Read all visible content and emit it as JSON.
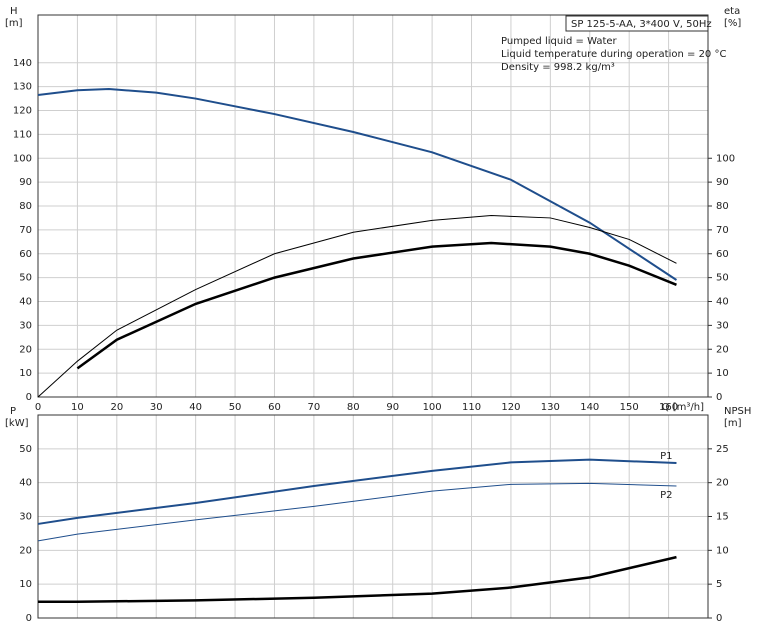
{
  "chart_data": [
    {
      "type": "line",
      "xlabel": "Q [m³/h]",
      "ylabel": "H",
      "ylabel_unit": "[m]",
      "y2label": "eta",
      "y2label_unit": "[%]",
      "annotations": [
        "SP 125-5-AA, 3*400 V, 50Hz",
        "Pumped liquid = Water",
        "Liquid temperature during operation = 20 °C",
        "Density = 998.2 kg/m³"
      ],
      "xlim": [
        0,
        170
      ],
      "xticks": [
        0,
        10,
        20,
        30,
        40,
        50,
        60,
        70,
        80,
        90,
        100,
        110,
        120,
        130,
        140,
        150,
        160
      ],
      "ylim": [
        0,
        160
      ],
      "yticks": [
        0,
        10,
        20,
        30,
        40,
        50,
        60,
        70,
        80,
        90,
        100,
        110,
        120,
        130,
        140
      ],
      "y2lim": [
        0,
        160
      ],
      "y2ticks": [
        0,
        10,
        20,
        30,
        40,
        50,
        60,
        70,
        80,
        90,
        100
      ],
      "grid": true,
      "series": [
        {
          "color": "#1f4e8c",
          "linewidth": 2,
          "axis": "y",
          "x": [
            0,
            10,
            18,
            30,
            40,
            60,
            80,
            100,
            120,
            140,
            162
          ],
          "values": [
            126.5,
            128.5,
            129,
            127.5,
            125,
            118.5,
            111,
            102.5,
            91,
            73,
            49
          ]
        },
        {
          "color": "#000000",
          "linewidth": 1,
          "axis": "y2",
          "x": [
            0,
            10,
            20,
            40,
            60,
            80,
            100,
            115,
            130,
            140,
            150,
            162
          ],
          "values": [
            0,
            15,
            28,
            45,
            60,
            69,
            74,
            76,
            75,
            71,
            66,
            56
          ]
        },
        {
          "color": "#000000",
          "linewidth": 2.5,
          "axis": "y2",
          "x": [
            10,
            20,
            40,
            60,
            80,
            100,
            115,
            130,
            140,
            150,
            162
          ],
          "values": [
            12,
            24,
            39,
            50,
            58,
            63,
            64.5,
            63,
            60,
            55,
            47
          ]
        }
      ]
    },
    {
      "type": "line",
      "ylabel": "P",
      "ylabel_unit": "[kW]",
      "y2label": "NPSH",
      "y2label_unit": "[m]",
      "xlim": [
        0,
        170
      ],
      "xticks": [
        0,
        10,
        20,
        30,
        40,
        50,
        60,
        70,
        80,
        90,
        100,
        110,
        120,
        130,
        140,
        150,
        160
      ],
      "ylim": [
        0,
        60
      ],
      "yticks": [
        0,
        10,
        20,
        30,
        40,
        50
      ],
      "y2lim": [
        0,
        30
      ],
      "y2ticks": [
        0,
        5,
        10,
        15,
        20,
        25
      ],
      "grid": true,
      "series": [
        {
          "name": "P1",
          "color": "#1f4e8c",
          "linewidth": 2,
          "axis": "y",
          "x": [
            0,
            10,
            40,
            70,
            100,
            120,
            140,
            162
          ],
          "values": [
            27.8,
            29.6,
            34,
            39,
            43.5,
            46,
            46.8,
            45.8
          ]
        },
        {
          "name": "P2",
          "color": "#1f4e8c",
          "linewidth": 1,
          "axis": "y",
          "x": [
            0,
            10,
            40,
            70,
            100,
            120,
            140,
            162
          ],
          "values": [
            22.8,
            24.8,
            29,
            33,
            37.5,
            39.5,
            39.8,
            39
          ]
        },
        {
          "color": "#000000",
          "linewidth": 2.5,
          "axis": "y2",
          "x": [
            0,
            10,
            40,
            70,
            100,
            120,
            140,
            162
          ],
          "values": [
            2.4,
            2.4,
            2.6,
            3,
            3.6,
            4.5,
            6,
            9
          ]
        }
      ]
    }
  ]
}
